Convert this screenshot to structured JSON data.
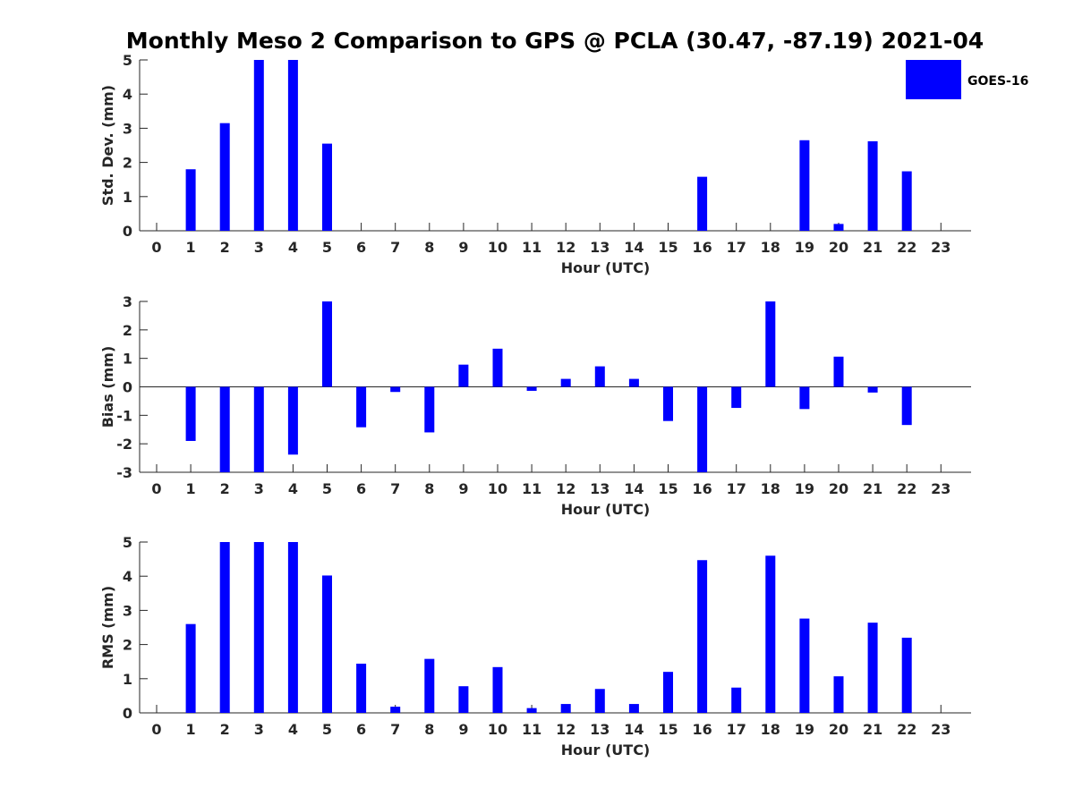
{
  "title": "Monthly Meso 2 Comparison to GPS @ PCLA (30.47, -87.19) 2021-04",
  "legend": {
    "label": "GOES-16",
    "color": "#0000ff"
  },
  "chart_data": [
    {
      "type": "bar",
      "xlabel": "Hour (UTC)",
      "ylabel": "Std. Dev. (mm)",
      "categories": [
        "0",
        "1",
        "2",
        "3",
        "4",
        "5",
        "6",
        "7",
        "8",
        "9",
        "10",
        "11",
        "12",
        "13",
        "14",
        "15",
        "16",
        "17",
        "18",
        "19",
        "20",
        "21",
        "22",
        "23"
      ],
      "ylim": [
        0,
        5
      ],
      "yticks": [
        0,
        1,
        2,
        3,
        4,
        5
      ],
      "series": [
        {
          "name": "GOES-16",
          "color": "#0000ff",
          "values": [
            null,
            1.8,
            3.15,
            5,
            5,
            2.55,
            null,
            null,
            null,
            null,
            null,
            null,
            null,
            null,
            null,
            null,
            1.58,
            null,
            null,
            2.65,
            0.2,
            2.62,
            1.74,
            null
          ]
        }
      ]
    },
    {
      "type": "bar",
      "xlabel": "Hour (UTC)",
      "ylabel": "Bias (mm)",
      "categories": [
        "0",
        "1",
        "2",
        "3",
        "4",
        "5",
        "6",
        "7",
        "8",
        "9",
        "10",
        "11",
        "12",
        "13",
        "14",
        "15",
        "16",
        "17",
        "18",
        "19",
        "20",
        "21",
        "22",
        "23"
      ],
      "ylim": [
        -3,
        3
      ],
      "yticks": [
        -3,
        -2,
        -1,
        0,
        1,
        2,
        3
      ],
      "series": [
        {
          "name": "GOES-16",
          "color": "#0000ff",
          "values": [
            null,
            -1.9,
            -3,
            -3,
            -2.38,
            3,
            -1.42,
            -0.18,
            -1.6,
            0.78,
            1.34,
            -0.14,
            0.28,
            0.72,
            0.28,
            -1.2,
            -3,
            -0.74,
            3,
            -0.78,
            1.06,
            -0.2,
            -1.34,
            null
          ]
        }
      ]
    },
    {
      "type": "bar",
      "xlabel": "Hour (UTC)",
      "ylabel": "RMS (mm)",
      "categories": [
        "0",
        "1",
        "2",
        "3",
        "4",
        "5",
        "6",
        "7",
        "8",
        "9",
        "10",
        "11",
        "12",
        "13",
        "14",
        "15",
        "16",
        "17",
        "18",
        "19",
        "20",
        "21",
        "22",
        "23"
      ],
      "ylim": [
        0,
        5
      ],
      "yticks": [
        0,
        1,
        2,
        3,
        4,
        5
      ],
      "series": [
        {
          "name": "GOES-16",
          "color": "#0000ff",
          "values": [
            null,
            2.6,
            5,
            5,
            5,
            4.02,
            1.44,
            0.18,
            1.58,
            0.78,
            1.34,
            0.14,
            0.26,
            0.7,
            0.26,
            1.2,
            4.47,
            0.74,
            4.6,
            2.76,
            1.07,
            2.64,
            2.2,
            null
          ]
        }
      ]
    }
  ]
}
